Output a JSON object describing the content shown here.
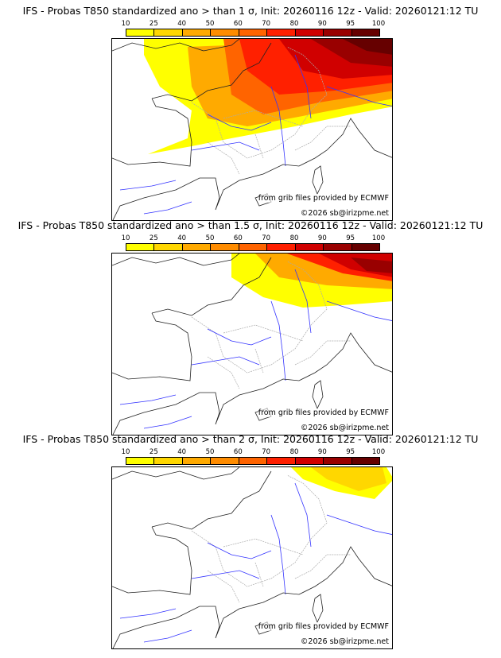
{
  "colorbar": {
    "labels": [
      "10",
      "25",
      "40",
      "50",
      "60",
      "70",
      "80",
      "90",
      "95",
      "100"
    ],
    "colors": [
      "#ffff00",
      "#ffd700",
      "#ffaa00",
      "#ff8c00",
      "#ff6400",
      "#ff2000",
      "#d00000",
      "#990000",
      "#660000"
    ]
  },
  "panels": [
    {
      "title": "IFS - Probas T850  standardized ano > than 1 σ, Init: 20260116 12z - Valid: 20260121:12 TU"
    },
    {
      "title": "IFS - Probas T850  standardized ano > than 1.5 σ, Init: 20260116 12z - Valid: 20260121:12 TU"
    },
    {
      "title": "IFS - Probas T850  standardized ano > than 2 σ, Init: 20260116 12z - Valid: 20260121:12 TU"
    }
  ],
  "credits": {
    "source": "from grib files provided by ECMWF",
    "copyright": "©2026 sb@irizpme.net"
  }
}
